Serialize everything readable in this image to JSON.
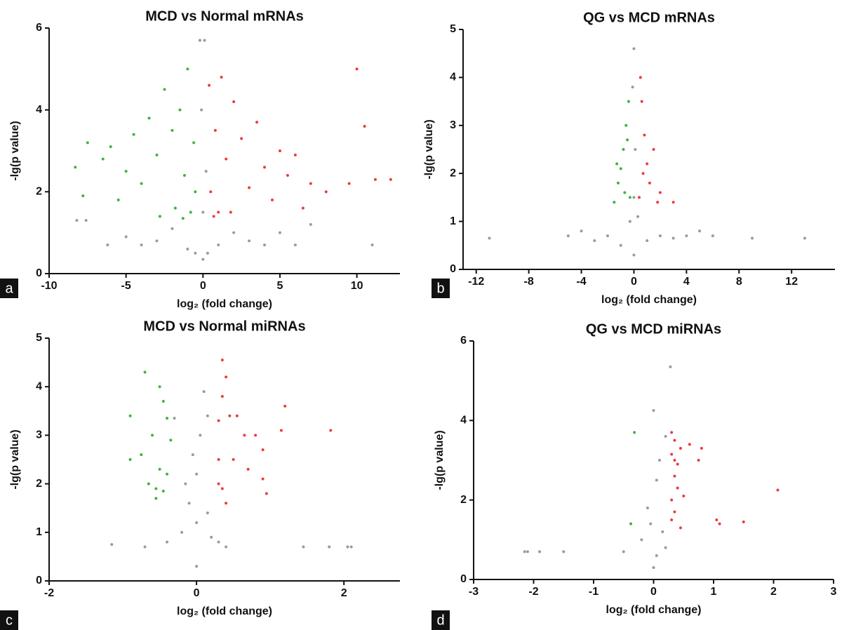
{
  "chart_data": [
    {
      "type": "scatter",
      "panel_label": "a",
      "title": "MCD vs Normal mRNAs",
      "x_label": "log₂ (fold change)",
      "y_label": "-lg(p value)",
      "xlim": [
        -10,
        12.8
      ],
      "xticks": [
        -10,
        -5,
        0,
        5,
        10
      ],
      "ylim": [
        0,
        6
      ],
      "yticks": [
        0,
        2,
        4,
        6
      ],
      "series": [
        {
          "color": "#9a9a9e",
          "x": [
            -8.2,
            -7.6,
            -5,
            -4,
            -3,
            -2,
            -1,
            -0.5,
            0,
            0.2,
            -0.1,
            0.1,
            0.3,
            1,
            2,
            3,
            4,
            5,
            6,
            7,
            11,
            -6.2,
            0,
            -0.2
          ],
          "values": [
            1.3,
            1.3,
            0.9,
            0.7,
            0.8,
            1.1,
            0.6,
            0.5,
            0.35,
            2.5,
            4.0,
            5.7,
            0.5,
            0.7,
            1.0,
            0.8,
            0.7,
            1.0,
            0.7,
            1.2,
            0.7,
            0.7,
            1.5,
            5.7
          ]
        },
        {
          "color": "#3cb53c",
          "x": [
            -8.3,
            -7.8,
            -7.5,
            -6.5,
            -6,
            -5.5,
            -5,
            -4.5,
            -4,
            -3.5,
            -3,
            -2.5,
            -2,
            -1.8,
            -1.5,
            -1.2,
            -1,
            -0.8,
            -0.6,
            -0.5,
            -2.8,
            -1.3
          ],
          "values": [
            2.6,
            1.9,
            3.2,
            2.8,
            3.1,
            1.8,
            2.5,
            3.4,
            2.2,
            3.8,
            2.9,
            4.5,
            3.5,
            1.6,
            4.0,
            2.4,
            5.0,
            1.5,
            3.2,
            2.0,
            1.4,
            1.35
          ]
        },
        {
          "color": "#ee3b3b",
          "x": [
            0.4,
            0.5,
            0.8,
            1,
            1.2,
            1.5,
            2,
            2.5,
            3,
            3.5,
            4,
            4.5,
            5,
            5.5,
            6,
            6.5,
            7,
            8,
            9.5,
            10,
            10.5,
            11.2,
            12.2,
            0.7,
            1.8
          ],
          "values": [
            4.6,
            2.0,
            3.5,
            1.5,
            4.8,
            2.8,
            4.2,
            3.3,
            2.1,
            3.7,
            2.6,
            1.8,
            3.0,
            2.4,
            2.9,
            1.6,
            2.2,
            2.0,
            2.2,
            5.0,
            3.6,
            2.3,
            2.3,
            1.4,
            1.5
          ]
        }
      ]
    },
    {
      "type": "scatter",
      "panel_label": "b",
      "title": "QG vs MCD mRNAs",
      "x_label": "log₂ (fold change)",
      "y_label": "-lg(p value)",
      "xlim": [
        -13,
        15.3
      ],
      "xticks": [
        -12,
        -8,
        -4,
        0,
        4,
        8,
        12
      ],
      "ylim": [
        0,
        5
      ],
      "yticks": [
        0,
        1,
        2,
        3,
        4,
        5
      ],
      "series": [
        {
          "color": "#9a9a9e",
          "x": [
            -11,
            -5,
            -4,
            -3,
            -2,
            -1,
            0,
            0,
            -0.1,
            0.1,
            1,
            2,
            3,
            4,
            5,
            6,
            9,
            13,
            0,
            -0.3,
            0.3
          ],
          "values": [
            0.65,
            0.7,
            0.8,
            0.6,
            0.7,
            0.5,
            0.3,
            4.6,
            3.8,
            2.5,
            0.6,
            0.7,
            0.65,
            0.7,
            0.8,
            0.7,
            0.65,
            0.65,
            1.5,
            1.0,
            1.1
          ]
        },
        {
          "color": "#3cb53c",
          "x": [
            -1.5,
            -1.2,
            -1,
            -0.8,
            -0.6,
            -0.4,
            -0.3,
            -0.7,
            -1.3,
            -0.5
          ],
          "values": [
            1.4,
            1.8,
            2.1,
            2.5,
            3.0,
            3.5,
            1.5,
            1.6,
            2.2,
            2.7
          ]
        },
        {
          "color": "#ee3b3b",
          "x": [
            0.4,
            0.6,
            0.8,
            1,
            1.2,
            1.5,
            2,
            3,
            0.5,
            0.7,
            1.8
          ],
          "values": [
            1.5,
            3.5,
            2.8,
            2.2,
            1.8,
            2.5,
            1.6,
            1.4,
            4.0,
            2.0,
            1.4
          ]
        }
      ]
    },
    {
      "type": "scatter",
      "panel_label": "c",
      "title": "MCD vs Normal miRNAs",
      "x_label": "log₂ (fold change)",
      "y_label": "-lg(p value)",
      "xlim": [
        -2,
        2.76
      ],
      "xticks": [
        -2,
        0,
        2
      ],
      "ylim": [
        0,
        5
      ],
      "yticks": [
        0,
        1,
        2,
        3,
        4,
        5
      ],
      "series": [
        {
          "color": "#9a9a9e",
          "x": [
            -1.15,
            -0.7,
            -0.4,
            -0.2,
            -0.1,
            0,
            0,
            0,
            0.05,
            0.1,
            0.15,
            0.2,
            0.3,
            0.4,
            1.45,
            1.8,
            2.05,
            2.1,
            -0.3,
            -0.05,
            0.15,
            -0.15
          ],
          "values": [
            0.75,
            0.7,
            0.8,
            1.0,
            1.6,
            0.3,
            1.2,
            2.2,
            3.0,
            3.9,
            3.4,
            0.9,
            0.8,
            0.7,
            0.7,
            0.7,
            0.7,
            0.7,
            3.35,
            2.6,
            1.4,
            2.0
          ]
        },
        {
          "color": "#3cb53c",
          "x": [
            -0.9,
            -0.7,
            -0.5,
            -0.45,
            -0.6,
            -0.75,
            -0.9,
            -0.5,
            -0.55,
            -0.65,
            -0.4,
            -0.4,
            -0.35,
            -0.55,
            -0.45
          ],
          "values": [
            3.4,
            4.3,
            4.0,
            3.7,
            3.0,
            2.6,
            2.5,
            2.3,
            1.9,
            2.0,
            2.2,
            3.35,
            2.9,
            1.7,
            1.85
          ]
        },
        {
          "color": "#ee3b3b",
          "x": [
            0.35,
            0.4,
            0.35,
            0.3,
            0.45,
            0.55,
            0.65,
            0.8,
            0.9,
            1.2,
            1.15,
            1.82,
            0.3,
            0.5,
            0.7,
            0.9,
            0.95,
            0.35,
            0.4,
            0.3
          ],
          "values": [
            4.55,
            4.2,
            3.8,
            3.3,
            3.4,
            3.4,
            3.0,
            3.0,
            2.7,
            3.6,
            3.1,
            3.1,
            2.5,
            2.5,
            2.3,
            2.1,
            1.8,
            1.9,
            1.6,
            2.0
          ]
        }
      ]
    },
    {
      "type": "scatter",
      "panel_label": "d",
      "title": "QG vs MCD miRNAs",
      "x_label": "log₂ (fold change)",
      "y_label": "-lg(p value)",
      "xlim": [
        -3,
        3
      ],
      "xticks": [
        -3,
        -2,
        -1,
        0,
        1,
        2,
        3
      ],
      "ylim": [
        0,
        6
      ],
      "yticks": [
        0,
        2,
        4,
        6
      ],
      "series": [
        {
          "color": "#9a9a9e",
          "x": [
            -2.15,
            -2.1,
            -1.9,
            -1.5,
            -0.5,
            -0.2,
            -0.1,
            0,
            0,
            0.28,
            0.05,
            0.1,
            0.15,
            0.2,
            -0.05,
            0.05,
            0.2
          ],
          "values": [
            0.7,
            0.7,
            0.7,
            0.7,
            0.7,
            1.0,
            1.8,
            0.3,
            4.25,
            5.35,
            2.5,
            3.0,
            1.2,
            0.8,
            1.4,
            0.6,
            3.6
          ]
        },
        {
          "color": "#3cb53c",
          "x": [
            -0.32,
            -0.38
          ],
          "values": [
            3.7,
            1.4
          ]
        },
        {
          "color": "#ee3b3b",
          "x": [
            0.3,
            0.35,
            0.3,
            0.35,
            0.45,
            0.6,
            0.8,
            0.75,
            0.35,
            0.4,
            0.5,
            0.3,
            0.35,
            0.3,
            0.45,
            1.05,
            1.1,
            1.5,
            2.07,
            0.4
          ],
          "values": [
            3.7,
            3.5,
            3.15,
            3.0,
            3.3,
            3.4,
            3.3,
            3.0,
            2.6,
            2.3,
            2.1,
            2.0,
            1.7,
            1.5,
            1.3,
            1.5,
            1.4,
            1.45,
            2.25,
            2.9
          ]
        }
      ]
    }
  ]
}
